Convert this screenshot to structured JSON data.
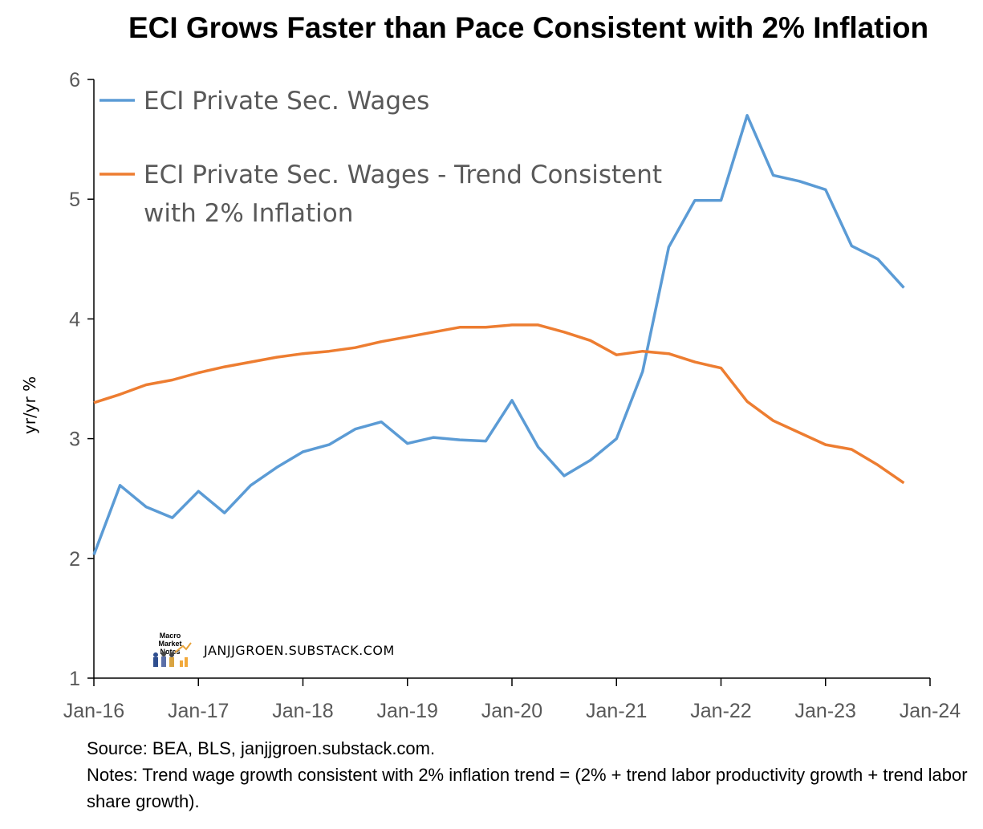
{
  "chart_data": {
    "type": "line",
    "title": "ECI Grows Faster than Pace Consistent with 2% Inflation",
    "xlabel": "",
    "ylabel": "yr/yr %",
    "xlim": [
      "Jan-16",
      "Jan-24"
    ],
    "ylim": [
      1,
      6
    ],
    "x_ticks": [
      "Jan-16",
      "Jan-17",
      "Jan-18",
      "Jan-19",
      "Jan-20",
      "Jan-21",
      "Jan-22",
      "Jan-23",
      "Jan-24"
    ],
    "y_ticks": [
      1,
      2,
      3,
      4,
      5,
      6
    ],
    "grid": false,
    "legend_position": "top-left",
    "x": [
      "2016-01",
      "2016-04",
      "2016-07",
      "2016-10",
      "2017-01",
      "2017-04",
      "2017-07",
      "2017-10",
      "2018-01",
      "2018-04",
      "2018-07",
      "2018-10",
      "2019-01",
      "2019-04",
      "2019-07",
      "2019-10",
      "2020-01",
      "2020-04",
      "2020-07",
      "2020-10",
      "2021-01",
      "2021-04",
      "2021-07",
      "2021-10",
      "2022-01",
      "2022-04",
      "2022-07",
      "2022-10",
      "2023-01",
      "2023-04",
      "2023-07",
      "2023-10"
    ],
    "series": [
      {
        "name": "ECI Private Sec. Wages",
        "color": "#5B9BD5",
        "values": [
          2.03,
          2.61,
          2.43,
          2.34,
          2.56,
          2.38,
          2.61,
          2.76,
          2.89,
          2.95,
          3.08,
          3.14,
          2.96,
          3.01,
          2.99,
          2.98,
          3.32,
          2.93,
          2.69,
          2.82,
          3.0,
          3.56,
          4.6,
          4.99,
          4.99,
          5.7,
          5.2,
          5.15,
          5.08,
          4.61,
          4.5,
          4.26
        ]
      },
      {
        "name": "ECI Private Sec. Wages - Trend Consistent with 2% Inflation",
        "name_lines": [
          "ECI Private Sec. Wages - Trend Consistent",
          "with 2% Inflation"
        ],
        "color": "#ED7D31",
        "values": [
          3.3,
          3.37,
          3.45,
          3.49,
          3.55,
          3.6,
          3.64,
          3.68,
          3.71,
          3.73,
          3.76,
          3.81,
          3.85,
          3.89,
          3.93,
          3.93,
          3.95,
          3.95,
          3.89,
          3.82,
          3.7,
          3.73,
          3.71,
          3.64,
          3.59,
          3.31,
          3.15,
          3.05,
          2.95,
          2.91,
          2.78,
          2.63
        ]
      }
    ]
  },
  "watermark": {
    "logo_text": "Macro Market Notes",
    "text": "JANJJGROEN.SUBSTACK.COM"
  },
  "notes": {
    "source": "Source: BEA, BLS, janjjgroen.substack.com.",
    "notes": "Notes: Trend wage growth consistent with 2% inflation trend = (2% + trend labor productivity growth + trend labor share growth)."
  }
}
